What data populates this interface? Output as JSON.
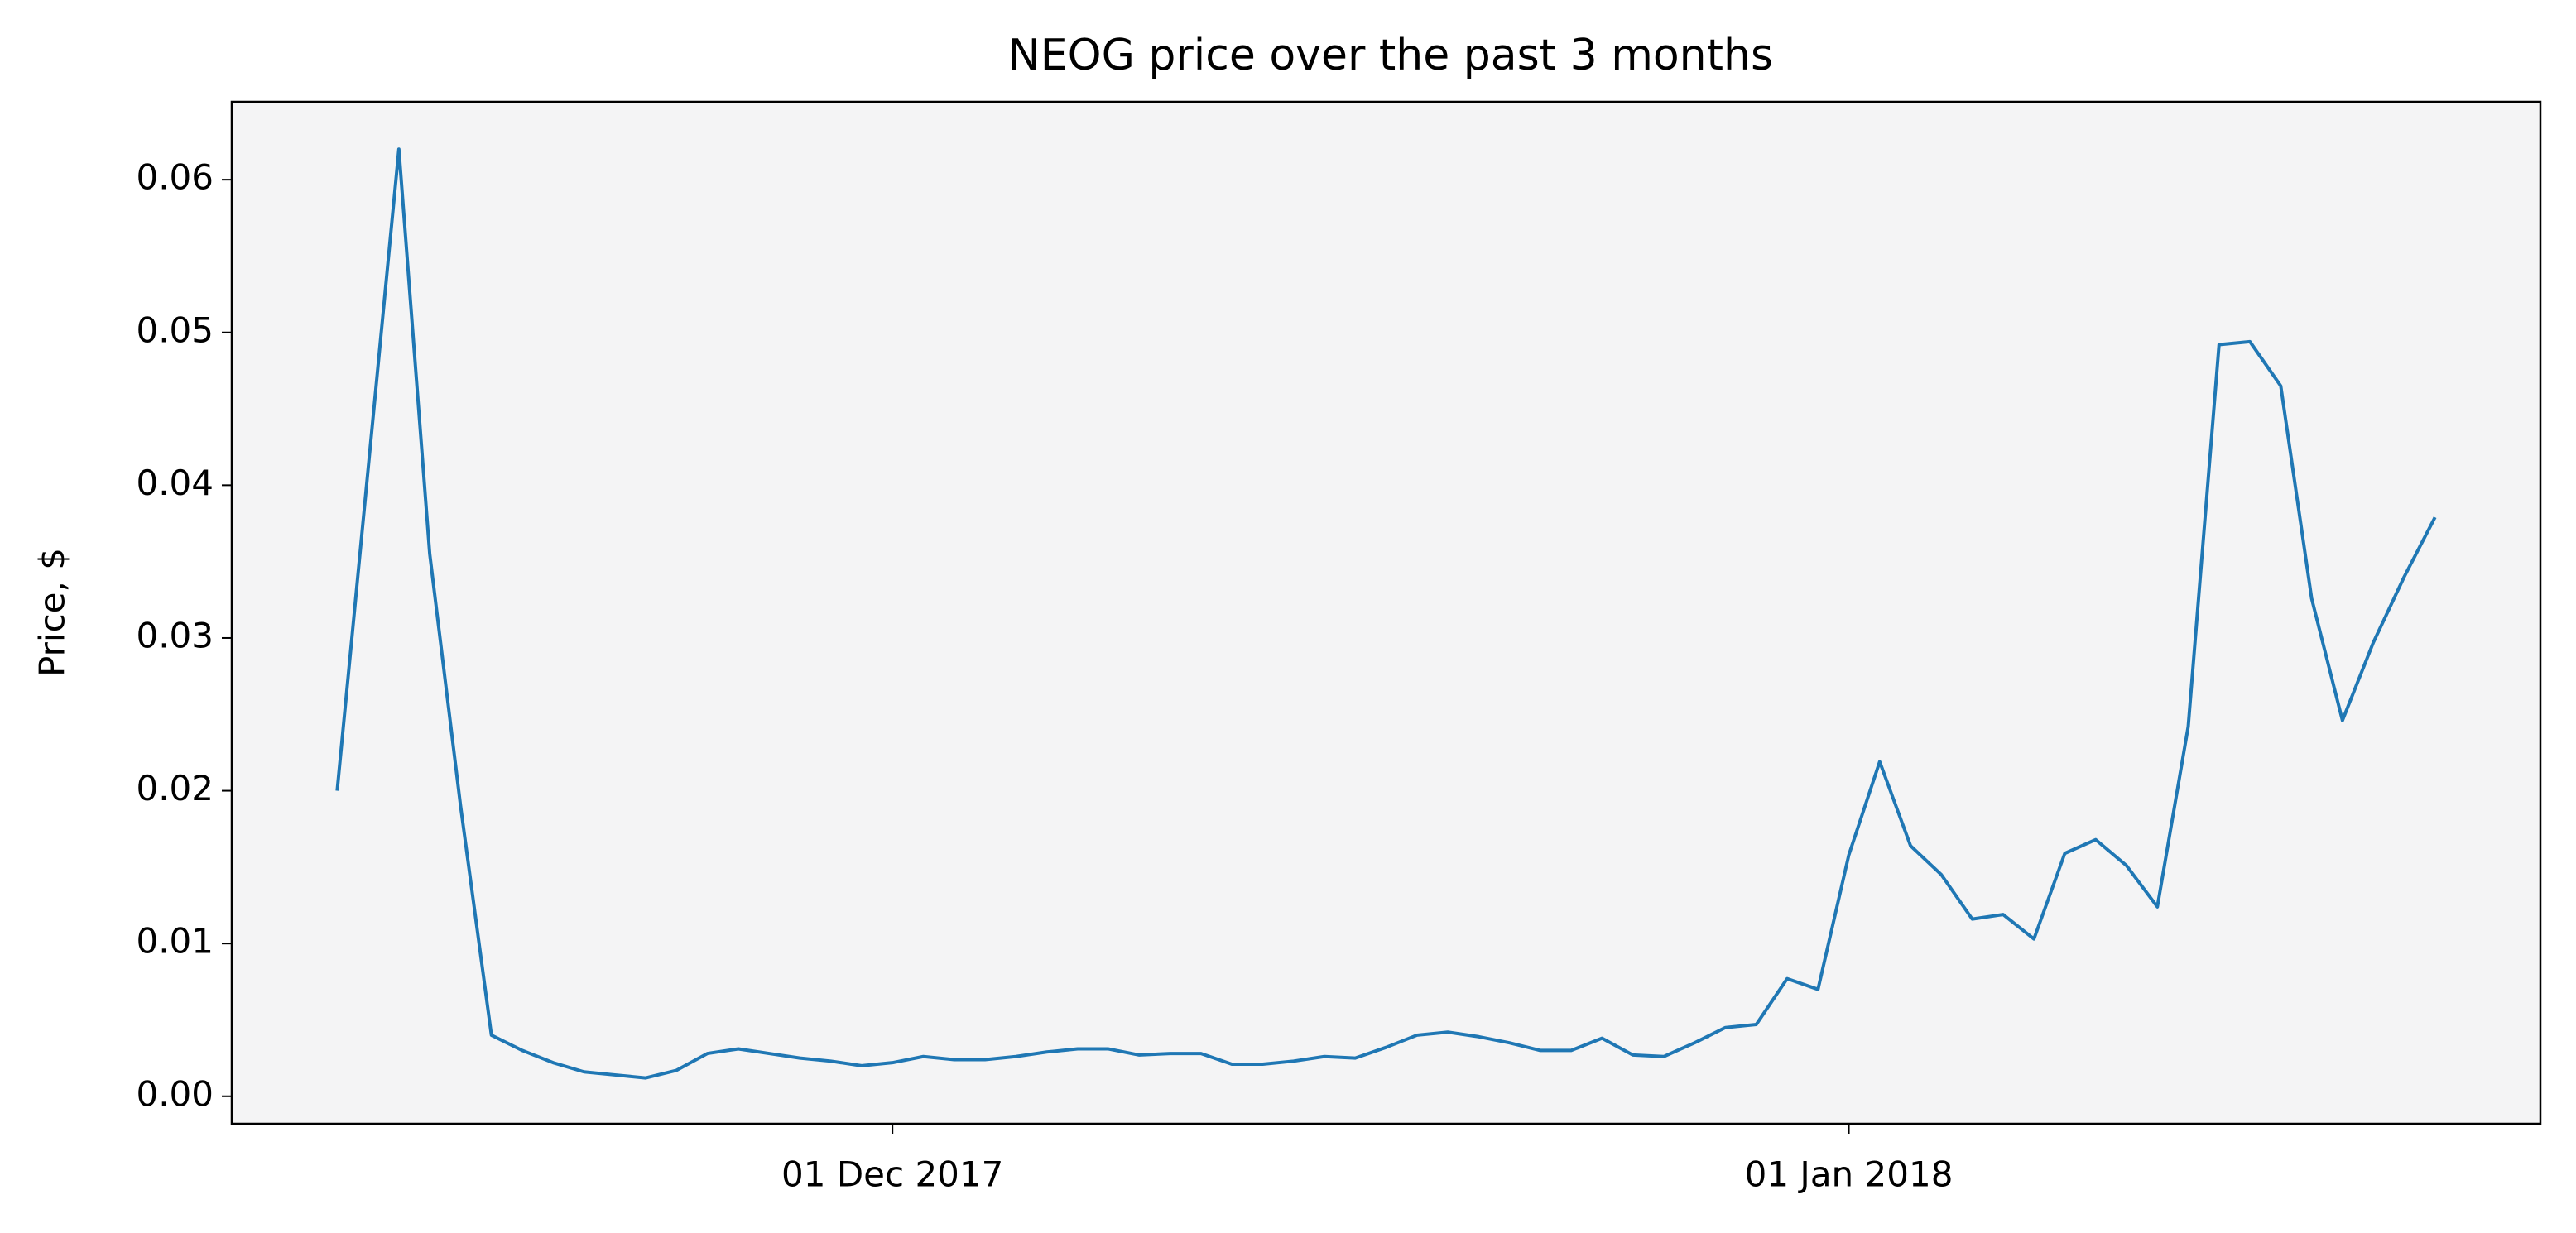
{
  "chart_data": {
    "type": "line",
    "title": "NEOG price over the past 3 months",
    "y_label": "Price, $",
    "color": "#1f77b4",
    "background": "#f4f4f5",
    "x": [
      "2017-11-13",
      "2017-11-14",
      "2017-11-15",
      "2017-11-16",
      "2017-11-17",
      "2017-11-18",
      "2017-11-19",
      "2017-11-20",
      "2017-11-21",
      "2017-11-22",
      "2017-11-23",
      "2017-11-24",
      "2017-11-25",
      "2017-11-26",
      "2017-11-27",
      "2017-11-28",
      "2017-11-29",
      "2017-11-30",
      "2017-12-01",
      "2017-12-02",
      "2017-12-03",
      "2017-12-04",
      "2017-12-05",
      "2017-12-06",
      "2017-12-07",
      "2017-12-08",
      "2017-12-09",
      "2017-12-10",
      "2017-12-11",
      "2017-12-12",
      "2017-12-13",
      "2017-12-14",
      "2017-12-15",
      "2017-12-16",
      "2017-12-17",
      "2017-12-18",
      "2017-12-19",
      "2017-12-20",
      "2017-12-21",
      "2017-12-22",
      "2017-12-23",
      "2017-12-24",
      "2017-12-25",
      "2017-12-26",
      "2017-12-27",
      "2017-12-28",
      "2017-12-29",
      "2017-12-30",
      "2017-12-31",
      "2018-01-01",
      "2018-01-02",
      "2018-01-03",
      "2018-01-04",
      "2018-01-05",
      "2018-01-06",
      "2018-01-07",
      "2018-01-08",
      "2018-01-09",
      "2018-01-10",
      "2018-01-11",
      "2018-01-12",
      "2018-01-13",
      "2018-01-14",
      "2018-01-15",
      "2018-01-16",
      "2018-01-17",
      "2018-01-18",
      "2018-01-19",
      "2018-01-20"
    ],
    "values": [
      0.02,
      0.041,
      0.062,
      0.0355,
      0.019,
      0.004,
      0.003,
      0.0022,
      0.0016,
      0.0014,
      0.0012,
      0.0017,
      0.0028,
      0.0031,
      0.0028,
      0.0025,
      0.0023,
      0.002,
      0.0022,
      0.0026,
      0.0024,
      0.0024,
      0.0026,
      0.0029,
      0.0031,
      0.0031,
      0.0027,
      0.0028,
      0.0028,
      0.0021,
      0.0021,
      0.0023,
      0.0026,
      0.0025,
      0.0032,
      0.004,
      0.0042,
      0.0039,
      0.0035,
      0.003,
      0.003,
      0.0038,
      0.0027,
      0.0026,
      0.0035,
      0.0045,
      0.0047,
      0.0077,
      0.007,
      0.0158,
      0.0219,
      0.0164,
      0.0145,
      0.0116,
      0.0119,
      0.0103,
      0.0159,
      0.0168,
      0.0151,
      0.0124,
      0.0242,
      0.0492,
      0.0494,
      0.0465,
      0.0326,
      0.0246,
      0.0297,
      0.034,
      0.0379
    ],
    "xlim": [
      "2017-11-09T14:00:00Z",
      "2018-01-23T10:00:00Z"
    ],
    "xticks": [
      {
        "value": "2017-12-01",
        "label": "01 Dec 2017"
      },
      {
        "value": "2018-01-01",
        "label": "01 Jan 2018"
      }
    ],
    "ylim": [
      -0.0018,
      0.0651
    ],
    "yticks": [
      {
        "value": 0,
        "label": "0.00"
      },
      {
        "value": 0.01,
        "label": "0.01"
      },
      {
        "value": 0.02,
        "label": "0.02"
      },
      {
        "value": 0.03,
        "label": "0.03"
      },
      {
        "value": 0.04,
        "label": "0.04"
      },
      {
        "value": 0.05,
        "label": "0.05"
      },
      {
        "value": 0.06,
        "label": "0.06"
      }
    ],
    "grid": false
  }
}
